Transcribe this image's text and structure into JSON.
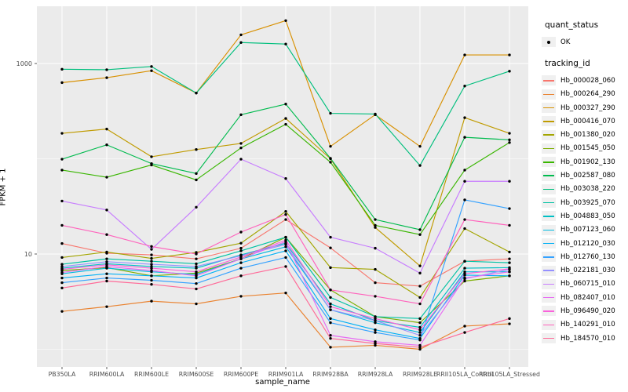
{
  "legend": {
    "quant_status": {
      "title": "quant_status",
      "items": [
        {
          "label": "OK",
          "symbol": "point"
        }
      ]
    },
    "tracking_id": {
      "title": "tracking_id"
    }
  },
  "panel": {
    "background": "#EBEBEB",
    "gridline_color": "#FFFFFF",
    "point_color": "#000000",
    "axis_text_color": "#4D4D4D"
  },
  "chart_data": {
    "type": "line",
    "title": "",
    "xlabel": "sample_name",
    "ylabel": "FPKM + 1",
    "y_scale": "log10",
    "ylim": [
      0.65,
      4000
    ],
    "grid": true,
    "legend_position": "right",
    "y_ticks": [
      {
        "label": "1000",
        "value": 1000
      },
      {
        "label": "10",
        "value": 10
      }
    ],
    "y_minor_gridlines": [
      1,
      100
    ],
    "categories": [
      "PB350LA",
      "RRIM600LA",
      "RRIM600LE",
      "RRIM600SE",
      "RRIM600PE",
      "RRIM901LA",
      "RRIM928BA",
      "RRIM928LA",
      "RRIM928LE",
      "RRII105LA_Control",
      "RRII105LA_Stressed"
    ],
    "series": [
      {
        "tracking_id": "Hb_000028_060",
        "quant_status": "OK",
        "color": "#F8766D",
        "values": [
          12.9,
          10.2,
          9.8,
          8.9,
          11.5,
          23,
          11.6,
          5.0,
          4.6,
          8.4,
          8.9
        ]
      },
      {
        "tracking_id": "Hb_000264_290",
        "quant_status": "OK",
        "color": "#EA8331",
        "values": [
          2.5,
          2.8,
          3.2,
          3.0,
          3.6,
          3.9,
          1.05,
          1.1,
          1.0,
          1.75,
          1.85
        ]
      },
      {
        "tracking_id": "Hb_000327_290",
        "quant_status": "OK",
        "color": "#D89000",
        "values": [
          630,
          710,
          840,
          490,
          2000,
          2820,
          135,
          290,
          135,
          1230,
          1230
        ]
      },
      {
        "tracking_id": "Hb_000416_070",
        "quant_status": "OK",
        "color": "#C09B00",
        "values": [
          185,
          205,
          105,
          125,
          145,
          265,
          100,
          19,
          7.5,
          270,
          185
        ]
      },
      {
        "tracking_id": "Hb_001380_020",
        "quant_status": "OK",
        "color": "#A3A500",
        "values": [
          9.2,
          10.5,
          9.0,
          10.4,
          13,
          28,
          7.2,
          6.9,
          3.5,
          18.5,
          10.5
        ]
      },
      {
        "tracking_id": "Hb_001545_050",
        "quant_status": "OK",
        "color": "#7CAE00",
        "values": [
          6.7,
          7.2,
          5.9,
          6.3,
          8.9,
          15,
          4.2,
          2.2,
          1.9,
          5.2,
          5.9
        ]
      },
      {
        "tracking_id": "Hb_001902_130",
        "quant_status": "OK",
        "color": "#39B600",
        "values": [
          76,
          64,
          86,
          60,
          130,
          230,
          92,
          20,
          16,
          76,
          148
        ]
      },
      {
        "tracking_id": "Hb_002587_080",
        "quant_status": "OK",
        "color": "#00BB4E",
        "values": [
          99,
          140,
          89,
          70,
          290,
          375,
          101,
          23,
          18,
          168,
          158
        ]
      },
      {
        "tracking_id": "Hb_003038_220",
        "quant_status": "OK",
        "color": "#00BF7D",
        "values": [
          870,
          860,
          930,
          490,
          1660,
          1600,
          300,
          295,
          85,
          580,
          830
        ]
      },
      {
        "tracking_id": "Hb_003925_070",
        "quant_status": "OK",
        "color": "#00C1A3",
        "values": [
          7.8,
          8.9,
          8.4,
          7.9,
          10.8,
          15,
          3.5,
          2.2,
          2.1,
          8.4,
          8.1
        ]
      },
      {
        "tracking_id": "Hb_004883_050",
        "quant_status": "OK",
        "color": "#00BFC4",
        "values": [
          7.1,
          7.9,
          7.4,
          7.1,
          9.8,
          13,
          3.0,
          2.0,
          1.7,
          7.1,
          7.2
        ]
      },
      {
        "tracking_id": "Hb_007123_060",
        "quant_status": "OK",
        "color": "#00BAE0",
        "values": [
          6.2,
          7.1,
          6.5,
          6.1,
          8.9,
          11.9,
          2.6,
          1.9,
          1.5,
          6.5,
          6.5
        ]
      },
      {
        "tracking_id": "Hb_012120_030",
        "quant_status": "OK",
        "color": "#00B0F6",
        "values": [
          5.6,
          6.2,
          5.9,
          5.6,
          8.1,
          10.8,
          2.1,
          1.6,
          1.3,
          6.0,
          5.9
        ]
      },
      {
        "tracking_id": "Hb_012760_130",
        "quant_status": "OK",
        "color": "#35A2FF",
        "values": [
          5.0,
          5.6,
          5.3,
          4.9,
          7.1,
          9.2,
          1.9,
          1.5,
          1.25,
          37,
          30
        ]
      },
      {
        "tracking_id": "Hb_022181_030",
        "quant_status": "OK",
        "color": "#9590FF",
        "values": [
          7.4,
          8.3,
          7.8,
          7.4,
          9.6,
          12.6,
          2.6,
          2.0,
          1.4,
          5.5,
          6.9
        ]
      },
      {
        "tracking_id": "Hb_060715_010",
        "quant_status": "OK",
        "color": "#C77CFF",
        "values": [
          36,
          29,
          11.2,
          31,
          99,
          62,
          15,
          11.5,
          6.3,
          58,
          58
        ]
      },
      {
        "tracking_id": "Hb_082407_010",
        "quant_status": "OK",
        "color": "#E76BF3",
        "values": [
          6.4,
          7.4,
          6.7,
          5.9,
          8.9,
          13.5,
          1.4,
          1.2,
          1.1,
          5.6,
          6.5
        ]
      },
      {
        "tracking_id": "Hb_096490_020",
        "quant_status": "OK",
        "color": "#FA62DB",
        "values": [
          6.9,
          7.7,
          7.1,
          6.5,
          9.3,
          14,
          2.8,
          2.1,
          1.6,
          6.2,
          7.0
        ]
      },
      {
        "tracking_id": "Hb_140291_010",
        "quant_status": "OK",
        "color": "#FF62BC",
        "values": [
          20,
          16,
          12,
          10,
          17,
          26,
          4.2,
          3.6,
          3.0,
          23,
          20
        ]
      },
      {
        "tracking_id": "Hb_184570_010",
        "quant_status": "OK",
        "color": "#FF6A98",
        "values": [
          4.4,
          5.2,
          4.8,
          4.3,
          5.9,
          7.4,
          1.3,
          1.15,
          1.05,
          1.5,
          2.1
        ]
      }
    ]
  }
}
